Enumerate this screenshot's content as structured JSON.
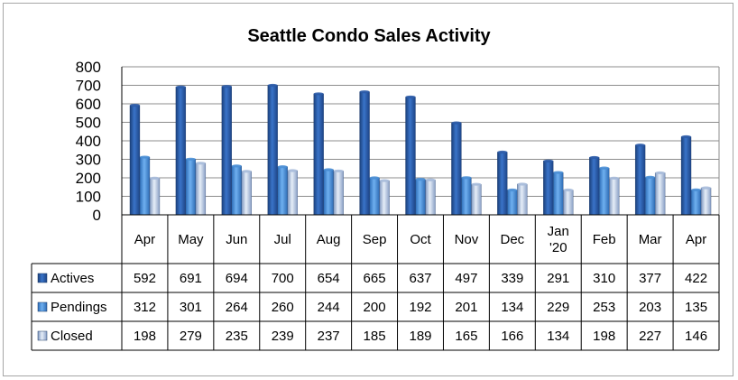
{
  "chart_data": {
    "type": "bar",
    "title": "Seattle Condo Sales Activity",
    "categories": [
      [
        "Apr"
      ],
      [
        "May"
      ],
      [
        "Jun"
      ],
      [
        "Jul"
      ],
      [
        "Aug"
      ],
      [
        "Sep"
      ],
      [
        "Oct"
      ],
      [
        "Nov"
      ],
      [
        "Dec"
      ],
      [
        "Jan",
        "'20"
      ],
      [
        "Feb"
      ],
      [
        "Mar"
      ],
      [
        "Apr"
      ]
    ],
    "series": [
      {
        "name": "Actives",
        "color": "#2b5ba8",
        "values": [
          592,
          691,
          694,
          700,
          654,
          665,
          637,
          497,
          339,
          291,
          310,
          377,
          422
        ]
      },
      {
        "name": "Pendings",
        "color": "#4a8fd6",
        "values": [
          312,
          301,
          264,
          260,
          244,
          200,
          192,
          201,
          134,
          229,
          253,
          203,
          135
        ]
      },
      {
        "name": "Closed",
        "color": "#a9bddb",
        "values": [
          198,
          279,
          235,
          239,
          237,
          185,
          189,
          165,
          166,
          134,
          198,
          227,
          146
        ]
      }
    ],
    "ylim": [
      0,
      800
    ],
    "yticks": [
      0,
      100,
      200,
      300,
      400,
      500,
      600,
      700,
      800
    ],
    "grid": true,
    "legend": "data-table",
    "data_table": true
  }
}
